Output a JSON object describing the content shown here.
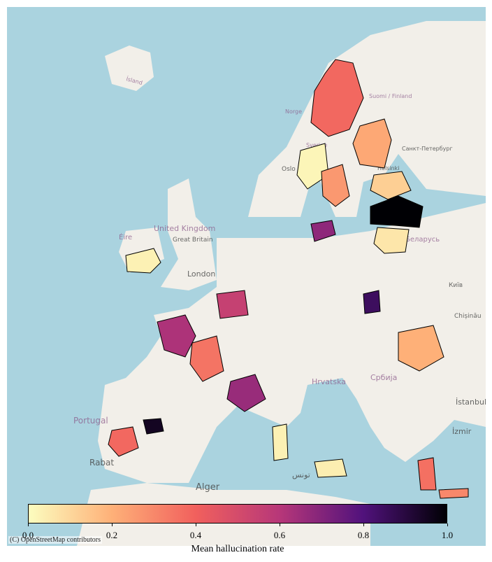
{
  "basemap": {
    "attribution": "(C) OpenStreetMap contributors",
    "place_labels": [
      {
        "text": "Ísland",
        "kind": "country"
      },
      {
        "text": "Norge",
        "kind": "country"
      },
      {
        "text": "Suomi / Finland",
        "kind": "country"
      },
      {
        "text": "Sverige",
        "kind": "country"
      },
      {
        "text": "Санкт-Петербург",
        "kind": "city"
      },
      {
        "text": "Helsinki",
        "kind": "city"
      },
      {
        "text": "Oslo",
        "kind": "city"
      },
      {
        "text": "United Kingdom",
        "kind": "country"
      },
      {
        "text": "Great Britain",
        "kind": "region"
      },
      {
        "text": "Éire",
        "kind": "country"
      },
      {
        "text": "London",
        "kind": "city"
      },
      {
        "text": "Беларусь",
        "kind": "country"
      },
      {
        "text": "Київ",
        "kind": "city"
      },
      {
        "text": "Chișinău",
        "kind": "city"
      },
      {
        "text": "Hrvatska",
        "kind": "country"
      },
      {
        "text": "Србија",
        "kind": "country"
      },
      {
        "text": "İstanbul",
        "kind": "city"
      },
      {
        "text": "İzmir",
        "kind": "city"
      },
      {
        "text": "Portugal",
        "kind": "country"
      },
      {
        "text": "Rabat",
        "kind": "city"
      },
      {
        "text": "Alger",
        "kind": "city"
      },
      {
        "text": "تونس",
        "kind": "city"
      }
    ]
  },
  "colors": {
    "sea": "#aad3df",
    "land": "#f2efe9",
    "region_border": "#000000",
    "colormap": "magma_r"
  },
  "colorbar": {
    "label": "Mean hallucination rate",
    "min": 0.0,
    "max": 1.0,
    "ticks": [
      "0.0",
      "0.2",
      "0.4",
      "0.6",
      "0.8",
      "1.0"
    ]
  },
  "map_data": {
    "type": "choropleth",
    "regions": [
      {
        "name": "Lappi",
        "value": 0.38
      },
      {
        "name": "Pohjois-Pohjanmaa",
        "value": 0.22
      },
      {
        "name": "Norrland West",
        "value": 0.02
      },
      {
        "name": "Stockholm",
        "value": 0.26
      },
      {
        "name": "Estonia",
        "value": 0.12
      },
      {
        "name": "Latvia",
        "value": 1.0
      },
      {
        "name": "Lithuania",
        "value": 0.06
      },
      {
        "name": "Ireland",
        "value": 0.03
      },
      {
        "name": "Danish Islands",
        "value": 0.68
      },
      {
        "name": "West France",
        "value": 0.62
      },
      {
        "name": "Central France",
        "value": 0.35
      },
      {
        "name": "South-East France",
        "value": 0.66
      },
      {
        "name": "Madrid",
        "value": 0.95
      },
      {
        "name": "Extremadura",
        "value": 0.38
      },
      {
        "name": "Central Europe West",
        "value": 0.55
      },
      {
        "name": "Slovakia North",
        "value": 0.85
      },
      {
        "name": "Sicilia",
        "value": 0.04
      },
      {
        "name": "Sardegna",
        "value": 0.03
      },
      {
        "name": "Peloponnese",
        "value": 0.36
      },
      {
        "name": "Crete",
        "value": 0.3
      },
      {
        "name": "Romania West",
        "value": 0.2
      }
    ]
  }
}
